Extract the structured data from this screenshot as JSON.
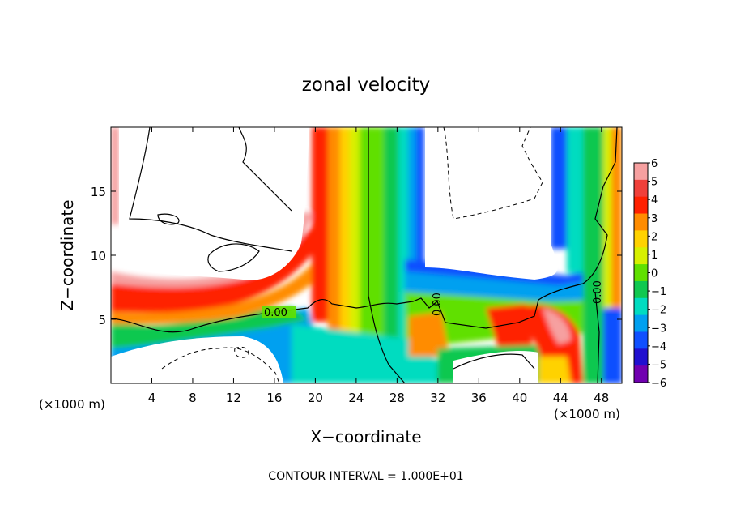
{
  "chart_data": {
    "type": "heatmap",
    "title": "zonal velocity",
    "xlabel": "X−coordinate",
    "ylabel": "Z−coordinate",
    "x_unit": "(×1000 m)",
    "y_unit": "(×1000 m)",
    "xlim": [
      0,
      50
    ],
    "ylim": [
      0,
      20
    ],
    "x_ticks": [
      "4",
      "8",
      "12",
      "16",
      "20",
      "24",
      "28",
      "32",
      "36",
      "40",
      "44",
      "48"
    ],
    "y_ticks": [
      "5",
      "10",
      "15"
    ],
    "colorbar": {
      "levels": [
        "6",
        "5",
        "4",
        "3",
        "2",
        "1",
        "0",
        "−1",
        "−2",
        "−3",
        "−4",
        "−5",
        "−6"
      ],
      "colors": [
        "#f6a0a0",
        "#f0403a",
        "#ff2000",
        "#ff8c00",
        "#ffd200",
        "#d7f000",
        "#60e000",
        "#10c850",
        "#00dcc0",
        "#00a0f0",
        "#1050ff",
        "#2010d0",
        "#7000b0"
      ]
    },
    "contour_label": "0.00",
    "contour_interval_text": "CONTOUR INTERVAL = 1.000E+01"
  }
}
